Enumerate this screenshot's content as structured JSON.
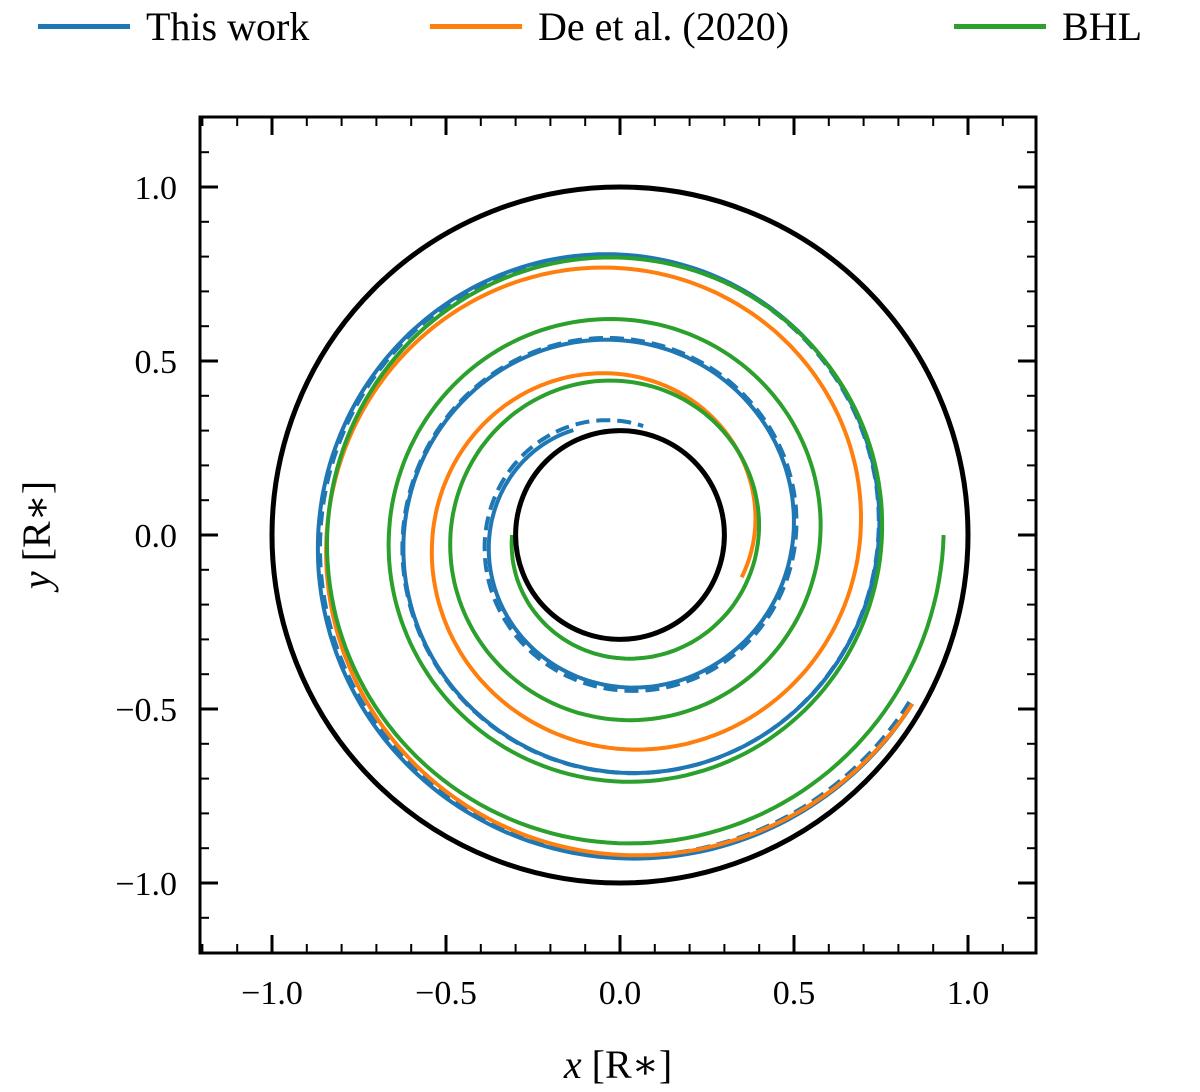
{
  "legend": {
    "items": [
      {
        "label": "This work",
        "color": "#1f77b4"
      },
      {
        "label": "De et al. (2020)",
        "color": "#ff7f0e"
      },
      {
        "label": "BHL",
        "color": "#2ca02c"
      }
    ]
  },
  "axes": {
    "xlabel_var": "x",
    "ylabel_var": "y",
    "unit": "[R∗]",
    "xticks": [
      "−1.0",
      "−0.5",
      "0.0",
      "0.5",
      "1.0"
    ],
    "yticks": [
      "1.0",
      "0.5",
      "0.0",
      "−0.5",
      "−1.0"
    ]
  },
  "chart_data": {
    "type": "line",
    "title": "",
    "xlabel": "x [R*]",
    "ylabel": "y [R*]",
    "xlim": [
      -1.2,
      1.2
    ],
    "ylim": [
      -1.2,
      1.2
    ],
    "xticks": [
      -1.0,
      -0.5,
      0.0,
      0.5,
      1.0
    ],
    "yticks": [
      -1.0,
      -0.5,
      0.0,
      0.5,
      1.0
    ],
    "minor_tick_step": 0.1,
    "grid": false,
    "legend_position": "top (outside)",
    "aspect": "equal",
    "reference_circles": [
      {
        "name": "outer boundary",
        "radius": 1.0,
        "color": "#000000"
      },
      {
        "name": "inner boundary",
        "radius": 0.3,
        "color": "#000000"
      }
    ],
    "series": [
      {
        "name": "This work",
        "color": "#1f77b4",
        "style": "solid",
        "description": "inward spiral (clockwise) from about (0.85,-0.5) to r~0.32",
        "r_start": 0.97,
        "r_end": 0.33,
        "theta_start_deg": -30,
        "turns": 2.6
      },
      {
        "name": "This work (dashed)",
        "color": "#1f77b4",
        "style": "dashed",
        "description": "inward spiral close to De et al. curve",
        "r_start": 0.96,
        "r_end": 0.32,
        "theta_start_deg": -30,
        "turns": 2.7
      },
      {
        "name": "De et al. (2020)",
        "color": "#ff7f0e",
        "style": "solid",
        "description": "inward spiral ending near (-0.37, 0.0)",
        "r_start": 0.97,
        "r_end": 0.37,
        "theta_start_deg": -30,
        "turns": 1.97
      },
      {
        "name": "BHL",
        "color": "#2ca02c",
        "style": "solid",
        "description": "inward spiral starting at (0.93, 0.0) ending near (-0.31, 0.0)",
        "r_start": 0.93,
        "r_end": 0.31,
        "theta_start_deg": 0,
        "turns": 3.5
      }
    ]
  }
}
